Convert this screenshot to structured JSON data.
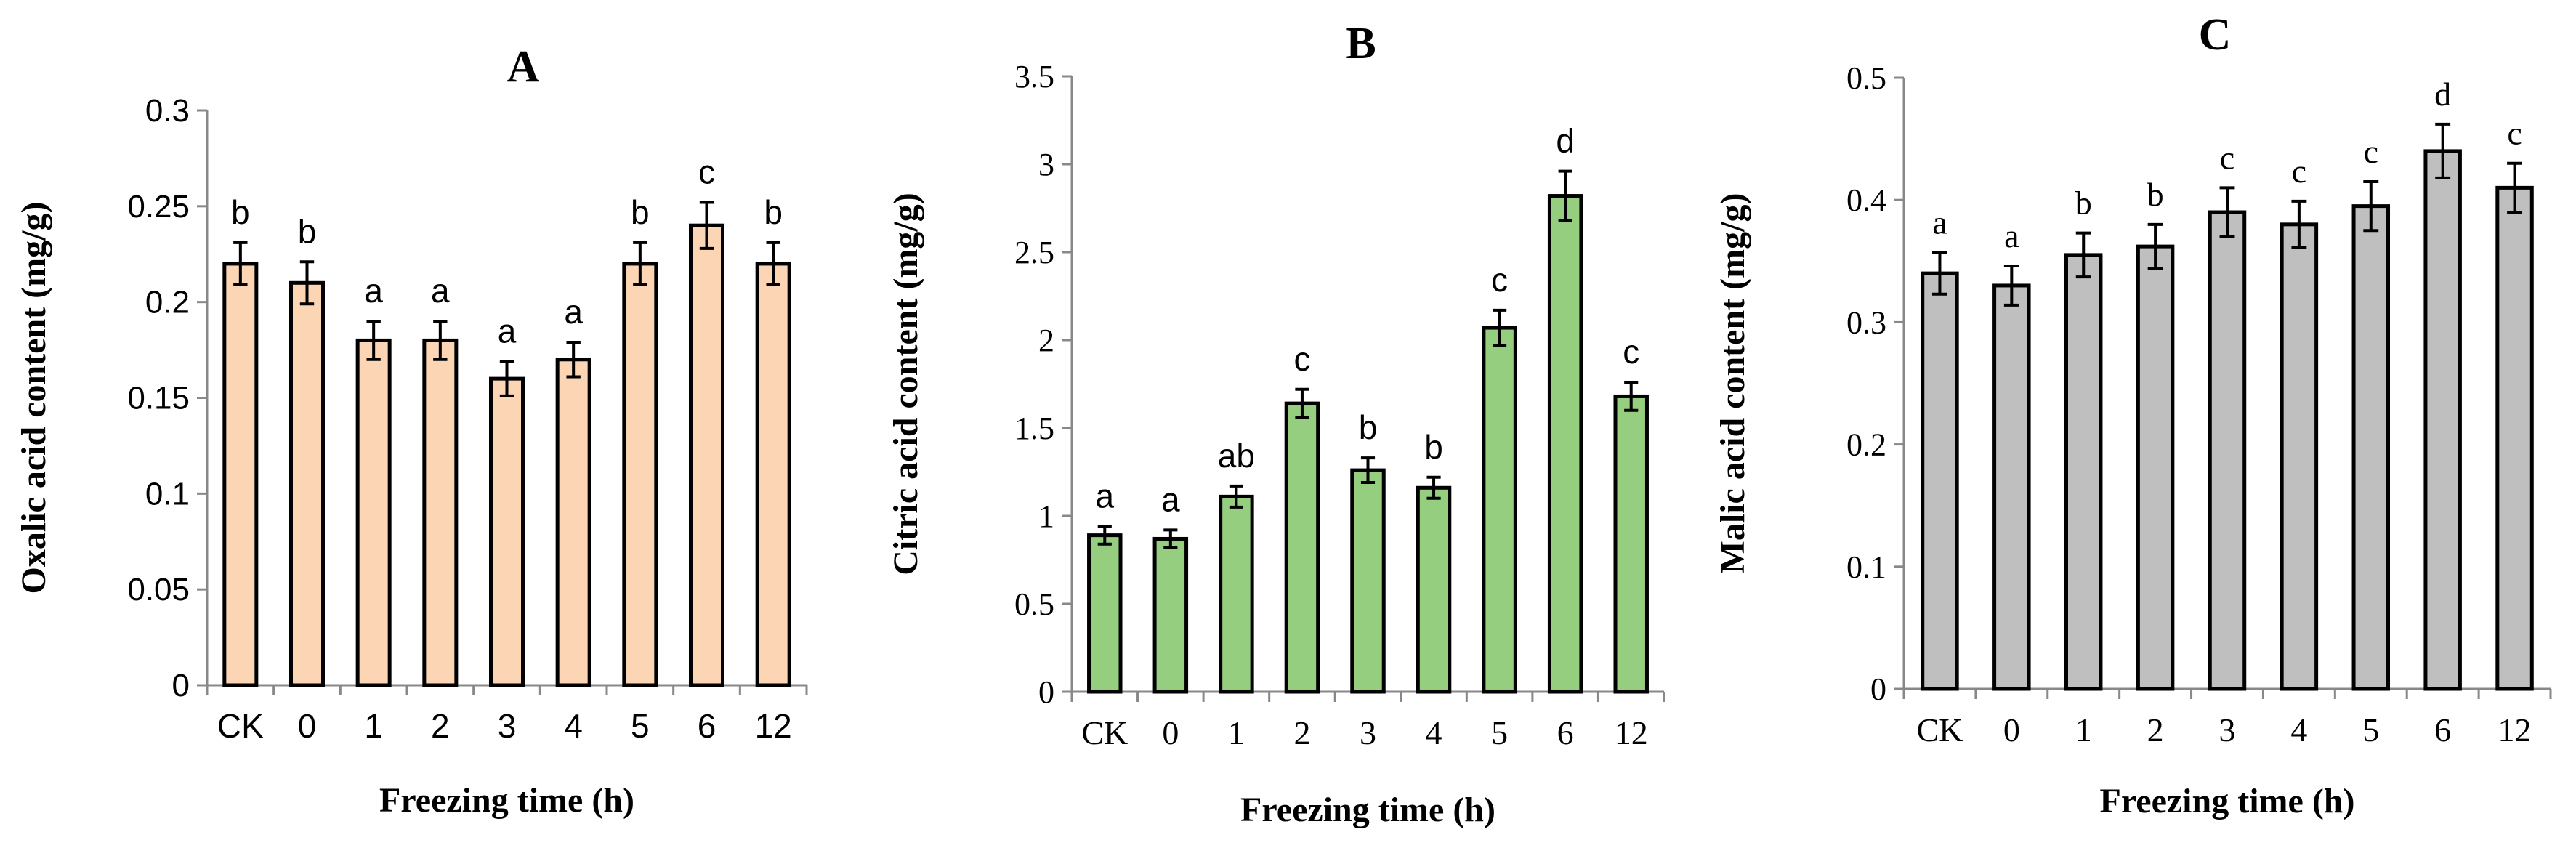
{
  "colors": {
    "axis": "#888888",
    "text": "#000000",
    "bar_stroke": "#000000",
    "panel_fills": [
      "#FCD5B5",
      "#96CE80",
      "#BFBFBF"
    ]
  },
  "chart_data": [
    {
      "type": "bar",
      "panel_label": "A",
      "ylabel": "Oxalic acid content (mg/g)",
      "xlabel": "Freezing time (h)",
      "categories": [
        "CK",
        "0",
        "1",
        "2",
        "3",
        "4",
        "5",
        "6",
        "12"
      ],
      "values": [
        0.22,
        0.21,
        0.18,
        0.18,
        0.16,
        0.17,
        0.22,
        0.24,
        0.22
      ],
      "errors": [
        0.011,
        0.011,
        0.01,
        0.01,
        0.009,
        0.009,
        0.011,
        0.012,
        0.011
      ],
      "significance": [
        "b",
        "b",
        "a",
        "a",
        "a",
        "a",
        "b",
        "c",
        "b"
      ],
      "ylim": [
        0,
        0.3
      ],
      "yticks": [
        "0",
        "0.05",
        "0.1",
        "0.15",
        "0.2",
        "0.25",
        "0.3"
      ],
      "grid": false
    },
    {
      "type": "bar",
      "panel_label": "B",
      "ylabel": "Citric acid content (mg/g)",
      "xlabel": "Freezing time (h)",
      "categories": [
        "CK",
        "0",
        "1",
        "2",
        "3",
        "4",
        "5",
        "6",
        "12"
      ],
      "values": [
        0.89,
        0.87,
        1.11,
        1.64,
        1.26,
        1.16,
        2.07,
        2.82,
        1.68
      ],
      "errors": [
        0.05,
        0.05,
        0.06,
        0.08,
        0.07,
        0.06,
        0.1,
        0.14,
        0.08
      ],
      "significance": [
        "a",
        "a",
        "ab",
        "c",
        "b",
        "b",
        "c",
        "d",
        "c"
      ],
      "ylim": [
        0,
        3.5
      ],
      "yticks": [
        "0",
        "0.5",
        "1",
        "1.5",
        "2",
        "2.5",
        "3",
        "3.5"
      ],
      "grid": false
    },
    {
      "type": "bar",
      "panel_label": "C",
      "ylabel": "Malic acid content (mg/g)",
      "xlabel": "Freezing time (h)",
      "categories": [
        "CK",
        "0",
        "1",
        "2",
        "3",
        "4",
        "5",
        "6",
        "12"
      ],
      "values": [
        0.34,
        0.33,
        0.355,
        0.362,
        0.39,
        0.38,
        0.395,
        0.44,
        0.41
      ],
      "errors": [
        0.017,
        0.016,
        0.018,
        0.018,
        0.02,
        0.019,
        0.02,
        0.022,
        0.02
      ],
      "significance": [
        "a",
        "a",
        "b",
        "b",
        "c",
        "c",
        "c",
        "d",
        "c"
      ],
      "ylim": [
        0,
        0.5
      ],
      "yticks": [
        "0",
        "0.1",
        "0.2",
        "0.3",
        "0.4",
        "0.5"
      ],
      "grid": false
    }
  ]
}
